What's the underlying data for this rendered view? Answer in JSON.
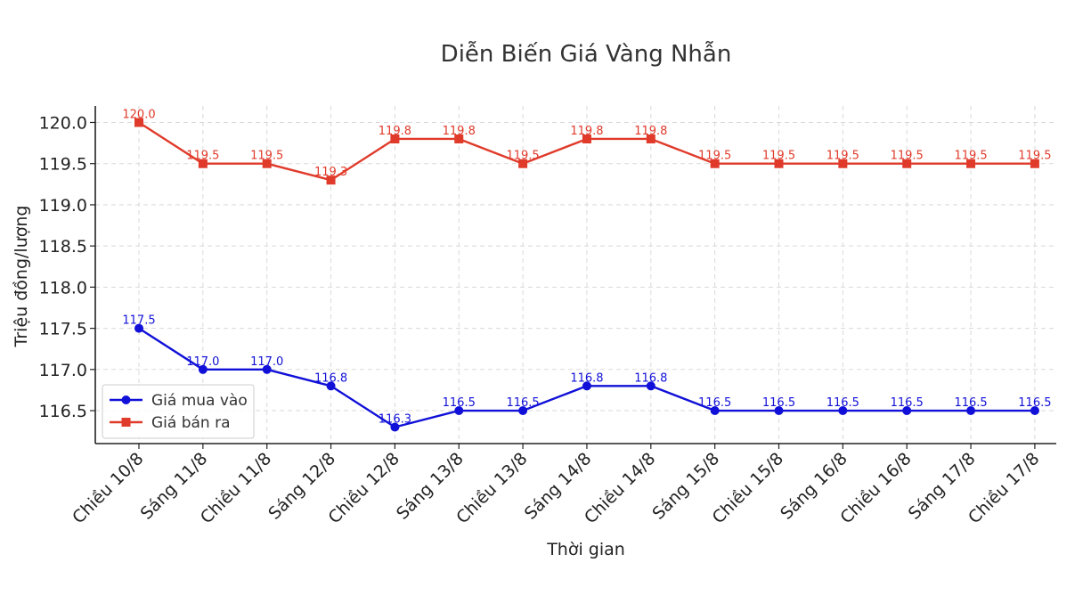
{
  "chart_data": {
    "type": "line",
    "title": "Diễn Biến Giá Vàng Nhẫn",
    "xlabel": "Thời gian",
    "ylabel": "Triệu đồng/lượng",
    "ylim": [
      116.1,
      120.2
    ],
    "yticks": [
      116.5,
      117.0,
      117.5,
      118.0,
      118.5,
      119.0,
      119.5,
      120.0
    ],
    "ytick_labels": [
      "116.5",
      "117.0",
      "117.5",
      "118.0",
      "118.5",
      "119.0",
      "119.5",
      "120.0"
    ],
    "grid": true,
    "legend_position": "lower-left",
    "categories": [
      "Chiều 10/8",
      "Sáng 11/8",
      "Chiều 11/8",
      "Sáng 12/8",
      "Chiều 12/8",
      "Sáng 13/8",
      "Chiều 13/8",
      "Sáng 14/8",
      "Chiều 14/8",
      "Sáng 15/8",
      "Chiều 15/8",
      "Sáng 16/8",
      "Chiều 16/8",
      "Sáng 17/8",
      "Chiều 17/8"
    ],
    "series": [
      {
        "name": "Giá mua vào",
        "color": "#1010d8",
        "marker": "circle",
        "values": [
          117.5,
          117.0,
          117.0,
          116.8,
          116.3,
          116.5,
          116.5,
          116.8,
          116.8,
          116.5,
          116.5,
          116.5,
          116.5,
          116.5,
          116.5
        ],
        "labels": [
          "117.5",
          "117.0",
          "117.0",
          "116.8",
          "116.3",
          "116.5",
          "116.5",
          "116.8",
          "116.8",
          "116.5",
          "116.5",
          "116.5",
          "116.5",
          "116.5",
          "116.5"
        ]
      },
      {
        "name": "Giá bán ra",
        "color": "#e03a2a",
        "marker": "square",
        "values": [
          120.0,
          119.5,
          119.5,
          119.3,
          119.8,
          119.8,
          119.5,
          119.8,
          119.8,
          119.5,
          119.5,
          119.5,
          119.5,
          119.5,
          119.5
        ],
        "labels": [
          "120.0",
          "119.5",
          "119.5",
          "119.3",
          "119.8",
          "119.8",
          "119.5",
          "119.8",
          "119.8",
          "119.5",
          "119.5",
          "119.5",
          "119.5",
          "119.5",
          "119.5"
        ]
      }
    ]
  }
}
